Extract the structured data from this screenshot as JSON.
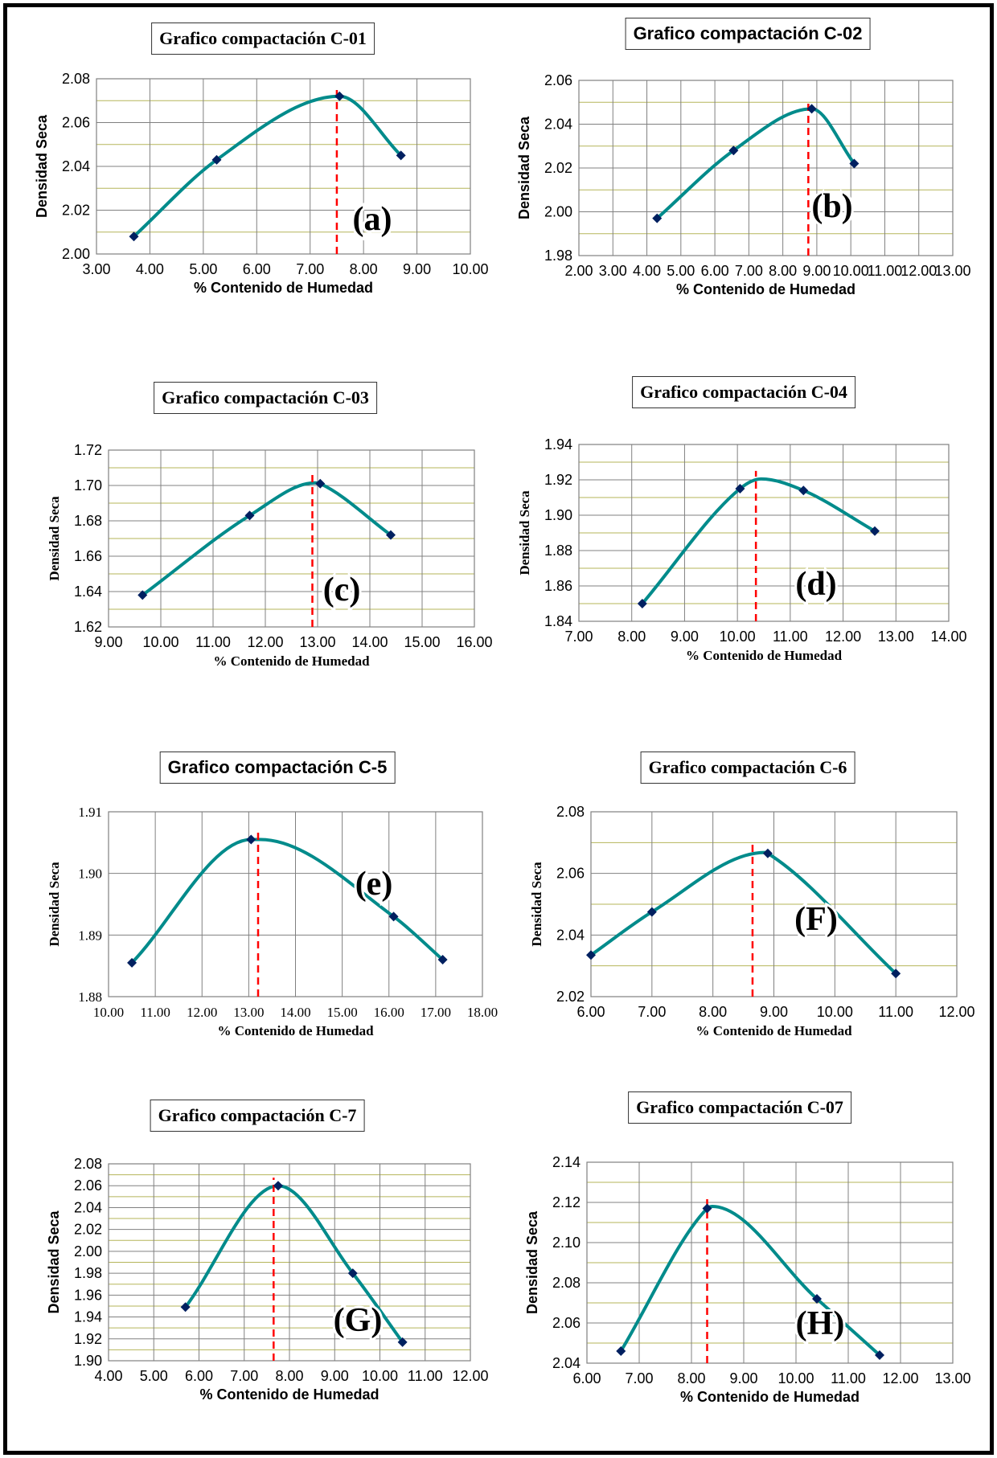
{
  "colors": {
    "curve": "#008b8b",
    "marker": "#002060",
    "optimum_line": "#ff0000",
    "major_grid": "#808080",
    "minor_grid": "#b5b55a",
    "frame_border": "#000000"
  },
  "chart_data": [
    {
      "type": "line",
      "panel": "(a)",
      "title": "Grafico compactación C-01",
      "xlabel": "% Contenido de Humedad",
      "ylabel": "Densidad Seca",
      "xlim": [
        3,
        10
      ],
      "ylim": [
        2.0,
        2.08
      ],
      "xticks": [
        3,
        4,
        5,
        6,
        7,
        8,
        9,
        10
      ],
      "yticks": [
        2.0,
        2.02,
        2.04,
        2.06,
        2.08
      ],
      "xtick_labels": [
        "3.00",
        "4.00",
        "5.00",
        "6.00",
        "7.00",
        "8.00",
        "9.00",
        "10.00"
      ],
      "ytick_labels": [
        "2.00",
        "2.02",
        "2.04",
        "2.06",
        "2.08"
      ],
      "minor_y": [
        2.01,
        2.03,
        2.05,
        2.07
      ],
      "x": [
        3.7,
        5.25,
        7.55,
        8.7
      ],
      "y": [
        2.008,
        2.043,
        2.072,
        2.045
      ],
      "curve_peak": [
        7.55,
        2.0725
      ],
      "optimum_x": 7.5,
      "grid": true,
      "legend": "none"
    },
    {
      "type": "line",
      "panel": "(b)",
      "title": "Grafico compactación C-02",
      "xlabel": "% Contenido de Humedad",
      "ylabel": "Densidad Seca",
      "xlim": [
        2,
        13
      ],
      "ylim": [
        1.98,
        2.06
      ],
      "xticks": [
        2,
        3,
        4,
        5,
        6,
        7,
        8,
        9,
        10,
        11,
        12,
        13
      ],
      "yticks": [
        1.98,
        2.0,
        2.02,
        2.04,
        2.06
      ],
      "xtick_labels": [
        "2.00",
        "3.00",
        "4.00",
        "5.00",
        "6.00",
        "7.00",
        "8.00",
        "9.00",
        "10.00",
        "11.00",
        "12.00",
        "13.00"
      ],
      "ytick_labels": [
        "1.98",
        "2.00",
        "2.02",
        "2.04",
        "2.06"
      ],
      "minor_y": [
        1.99,
        2.01,
        2.03,
        2.05
      ],
      "x": [
        4.3,
        6.55,
        8.85,
        10.1
      ],
      "y": [
        1.997,
        2.028,
        2.047,
        2.022
      ],
      "curve_peak": [
        8.85,
        2.0475
      ],
      "optimum_x": 8.75,
      "grid": true,
      "legend": "none"
    },
    {
      "type": "line",
      "panel": "(c)",
      "title": "Grafico compactación C-03",
      "xlabel": "% Contenido de Humedad",
      "ylabel": "Densidad Seca",
      "xlim": [
        9,
        16
      ],
      "ylim": [
        1.62,
        1.72
      ],
      "xticks": [
        9,
        10,
        11,
        12,
        13,
        14,
        15,
        16
      ],
      "yticks": [
        1.62,
        1.64,
        1.66,
        1.68,
        1.7,
        1.72
      ],
      "xtick_labels": [
        "9.00",
        "10.00",
        "11.00",
        "12.00",
        "13.00",
        "14.00",
        "15.00",
        "16.00"
      ],
      "ytick_labels": [
        "1.62",
        "1.64",
        "1.66",
        "1.68",
        "1.70",
        "1.72"
      ],
      "minor_y": [
        1.63,
        1.65,
        1.67,
        1.69,
        1.71
      ],
      "x": [
        9.65,
        11.7,
        13.05,
        14.4
      ],
      "y": [
        1.638,
        1.683,
        1.701,
        1.672
      ],
      "curve_peak": [
        12.95,
        1.7015
      ],
      "optimum_x": 12.9,
      "grid": true,
      "legend": "none"
    },
    {
      "type": "line",
      "panel": "(d)",
      "title": "Grafico compactación C-04",
      "xlabel": "% Contenido de Humedad",
      "ylabel": "Densidad Seca",
      "xlim": [
        7,
        14
      ],
      "ylim": [
        1.84,
        1.94
      ],
      "xticks": [
        7,
        8,
        9,
        10,
        11,
        12,
        13,
        14
      ],
      "yticks": [
        1.84,
        1.86,
        1.88,
        1.9,
        1.92,
        1.94
      ],
      "xtick_labels": [
        "7.00",
        "8.00",
        "9.00",
        "10.00",
        "11.00",
        "12.00",
        "13.00",
        "14.00"
      ],
      "ytick_labels": [
        "1.84",
        "1.86",
        "1.88",
        "1.90",
        "1.92",
        "1.94"
      ],
      "minor_y": [
        1.85,
        1.87,
        1.89,
        1.91,
        1.93
      ],
      "x": [
        8.2,
        10.05,
        11.25,
        12.6
      ],
      "y": [
        1.85,
        1.915,
        1.914,
        1.891
      ],
      "curve_peak": [
        10.45,
        1.9205
      ],
      "optimum_x": 10.35,
      "grid": true,
      "legend": "none"
    },
    {
      "type": "line",
      "panel": "(e)",
      "title": "Grafico compactación C-5",
      "xlabel": "% Contenido de Humedad",
      "ylabel": "Densidad Seca",
      "xlim": [
        10,
        18
      ],
      "ylim": [
        1.88,
        1.91
      ],
      "xticks": [
        10,
        11,
        12,
        13,
        14,
        15,
        16,
        17,
        18
      ],
      "yticks": [
        1.88,
        1.89,
        1.9,
        1.91
      ],
      "xtick_labels": [
        "10.00",
        "11.00",
        "12.00",
        "13.00",
        "14.00",
        "15.00",
        "16.00",
        "17.00",
        "18.00"
      ],
      "ytick_labels": [
        "1.88",
        "1.89",
        "1.90",
        "1.91"
      ],
      "minor_y": [],
      "x": [
        10.5,
        13.05,
        16.1,
        17.15
      ],
      "y": [
        1.8855,
        1.9055,
        1.893,
        1.886
      ],
      "curve_peak": [
        13.25,
        1.9055
      ],
      "optimum_x": 13.2,
      "grid": true,
      "legend": "none"
    },
    {
      "type": "line",
      "panel": "(F)",
      "title": "Grafico compactación  C-6",
      "xlabel": "% Contenido de Humedad",
      "ylabel": "Densidad Seca",
      "xlim": [
        6,
        12
      ],
      "ylim": [
        2.02,
        2.08
      ],
      "xticks": [
        6,
        7,
        8,
        9,
        10,
        11,
        12
      ],
      "yticks": [
        2.02,
        2.04,
        2.06,
        2.08
      ],
      "xtick_labels": [
        "6.00",
        "7.00",
        "8.00",
        "9.00",
        "10.00",
        "11.00",
        "12.00"
      ],
      "ytick_labels": [
        "2.02",
        "2.04",
        "2.06",
        "2.08"
      ],
      "minor_y": [
        2.03,
        2.05,
        2.07
      ],
      "x": [
        6.0,
        7.0,
        8.9,
        11.0
      ],
      "y": [
        2.0335,
        2.0475,
        2.0665,
        2.0275
      ],
      "curve_peak": [
        8.85,
        2.0668
      ],
      "optimum_x": 8.65,
      "grid": true,
      "legend": "none"
    },
    {
      "type": "line",
      "panel": "(G)",
      "title": "Grafico compactación C-7",
      "xlabel": "% Contenido de Humedad",
      "ylabel": "Densidad Seca",
      "xlim": [
        4,
        12
      ],
      "ylim": [
        1.9,
        2.08
      ],
      "xticks": [
        4,
        5,
        6,
        7,
        8,
        9,
        10,
        11,
        12
      ],
      "yticks": [
        1.9,
        1.92,
        1.94,
        1.96,
        1.98,
        2.0,
        2.02,
        2.04,
        2.06,
        2.08
      ],
      "xtick_labels": [
        "4.00",
        "5.00",
        "6.00",
        "7.00",
        "8.00",
        "9.00",
        "10.00",
        "11.00",
        "12.00"
      ],
      "ytick_labels": [
        "1.90",
        "1.92",
        "1.94",
        "1.96",
        "1.98",
        "2.00",
        "2.02",
        "2.04",
        "2.06",
        "2.08"
      ],
      "minor_y": [
        1.91,
        1.93,
        1.95,
        1.97,
        1.99,
        2.01,
        2.03,
        2.05,
        2.07
      ],
      "x": [
        5.7,
        7.75,
        9.4,
        10.5
      ],
      "y": [
        1.949,
        2.06,
        1.98,
        1.917
      ],
      "curve_peak": [
        7.75,
        2.06
      ],
      "optimum_x": 7.65,
      "grid": true,
      "legend": "none"
    },
    {
      "type": "line",
      "panel": "(H)",
      "title": "Grafico compactación C-07",
      "xlabel": "% Contenido de Humedad",
      "ylabel": "Densidad Seca",
      "xlim": [
        6,
        13
      ],
      "ylim": [
        2.04,
        2.14
      ],
      "xticks": [
        6,
        7,
        8,
        9,
        10,
        11,
        12,
        13
      ],
      "yticks": [
        2.04,
        2.06,
        2.08,
        2.1,
        2.12,
        2.14
      ],
      "xtick_labels": [
        "6.00",
        "7.00",
        "8.00",
        "9.00",
        "10.00",
        "11.00",
        "12.00",
        "13.00"
      ],
      "ytick_labels": [
        "2.04",
        "2.06",
        "2.08",
        "2.10",
        "2.12",
        "2.14"
      ],
      "minor_y": [
        2.05,
        2.07,
        2.09,
        2.11,
        2.13
      ],
      "x": [
        6.65,
        8.3,
        10.4,
        11.6
      ],
      "y": [
        2.046,
        2.117,
        2.072,
        2.044
      ],
      "curve_peak": [
        8.4,
        2.118
      ],
      "optimum_x": 8.3,
      "grid": true,
      "legend": "none"
    }
  ]
}
